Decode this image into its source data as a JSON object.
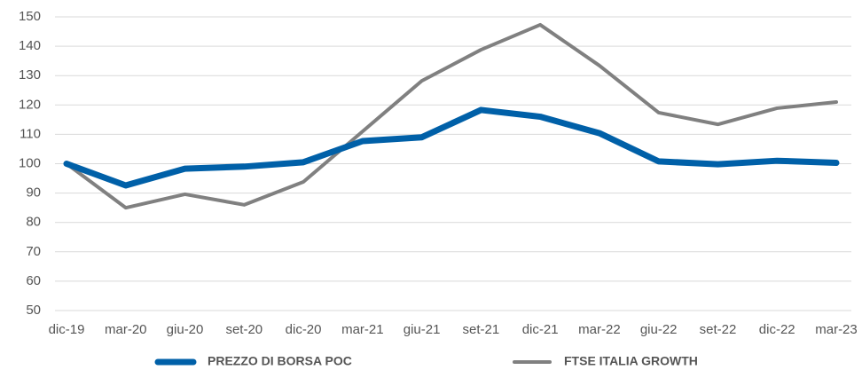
{
  "chart_data": {
    "type": "line",
    "categories": [
      "dic-19",
      "mar-20",
      "giu-20",
      "set-20",
      "dic-20",
      "mar-21",
      "giu-21",
      "set-21",
      "dic-21",
      "mar-22",
      "giu-22",
      "set-22",
      "dic-22",
      "mar-23"
    ],
    "series": [
      {
        "name": "PREZZO DI BORSA POC",
        "color": "#0060a8",
        "values": [
          100,
          92.6,
          98.3,
          99,
          100.5,
          107.7,
          109,
          118.3,
          116,
          110.4,
          100.8,
          99.8,
          101,
          100.3
        ]
      },
      {
        "name": "FTSE ITALIA GROWTH",
        "color": "#808080",
        "values": [
          100,
          85,
          89.6,
          86,
          93.8,
          111,
          128.2,
          138.8,
          147.3,
          133.4,
          117.4,
          113.4,
          118.9,
          121
        ]
      }
    ],
    "ylim": [
      50,
      150
    ],
    "yticks": [
      50,
      60,
      70,
      80,
      90,
      100,
      110,
      120,
      130,
      140,
      150
    ],
    "grid": true,
    "legend": "bottom"
  }
}
